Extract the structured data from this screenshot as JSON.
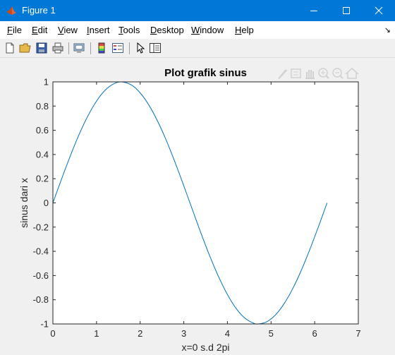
{
  "window": {
    "title": "Figure 1"
  },
  "menu": {
    "items": [
      {
        "label": "File",
        "accel": "F",
        "rest": "ile"
      },
      {
        "label": "Edit",
        "accel": "E",
        "rest": "dit"
      },
      {
        "label": "View",
        "accel": "V",
        "rest": "iew"
      },
      {
        "label": "Insert",
        "accel": "I",
        "rest": "nsert"
      },
      {
        "label": "Tools",
        "accel": "T",
        "rest": "ools"
      },
      {
        "label": "Desktop",
        "accel": "D",
        "rest": "esktop"
      },
      {
        "label": "Window",
        "accel": "W",
        "rest": "indow"
      },
      {
        "label": "Help",
        "accel": "H",
        "rest": "elp"
      }
    ],
    "overflow_icon": "arrow-corner-icon"
  },
  "toolbar": {
    "icons": [
      "new-figure-icon",
      "open-file-icon",
      "save-icon",
      "print-icon",
      "print-preview-icon",
      "colorbar-icon",
      "legend-icon",
      "pointer-icon",
      "property-inspector-icon"
    ]
  },
  "axes_toolbar": {
    "icons": [
      "brush-icon",
      "datatip-icon",
      "pan-icon",
      "zoom-in-icon",
      "zoom-out-icon",
      "home-icon"
    ]
  },
  "colors": {
    "line": "#0072bd",
    "titlebar": "#0078d7"
  },
  "chart_data": {
    "type": "line",
    "title": "Plot grafik sinus",
    "xlabel": "x=0 s.d 2pi",
    "ylabel": "sinus dari x",
    "xlim": [
      0,
      7
    ],
    "ylim": [
      -1,
      1
    ],
    "xticks": [
      0,
      1,
      2,
      3,
      4,
      5,
      6,
      7
    ],
    "yticks": [
      -1,
      -0.8,
      -0.6,
      -0.4,
      -0.2,
      0,
      0.2,
      0.4,
      0.6,
      0.8,
      1
    ],
    "xtick_labels": [
      "0",
      "1",
      "2",
      "3",
      "4",
      "5",
      "6",
      "7"
    ],
    "ytick_labels": [
      "-1",
      "-0.8",
      "-0.6",
      "-0.4",
      "-0.2",
      "0",
      "0.2",
      "0.4",
      "0.6",
      "0.8",
      "1"
    ],
    "grid": false,
    "series": [
      {
        "x": [
          0,
          0.2,
          0.4,
          0.6,
          0.8,
          1.0,
          1.2,
          1.4,
          1.5708,
          1.8,
          2.0,
          2.2,
          2.4,
          2.6,
          2.8,
          3.0,
          3.1416,
          3.4,
          3.6,
          3.8,
          4.0,
          4.2,
          4.4,
          4.6,
          4.7124,
          4.9,
          5.1,
          5.3,
          5.5,
          5.7,
          5.9,
          6.1,
          6.2832
        ],
        "y": [
          0,
          0.199,
          0.389,
          0.565,
          0.717,
          0.841,
          0.932,
          0.985,
          1,
          0.974,
          0.909,
          0.808,
          0.675,
          0.516,
          0.335,
          0.141,
          0,
          -0.256,
          -0.443,
          -0.612,
          -0.757,
          -0.872,
          -0.952,
          -0.994,
          -1,
          -0.982,
          -0.926,
          -0.832,
          -0.706,
          -0.551,
          -0.374,
          -0.183,
          0
        ]
      }
    ]
  }
}
